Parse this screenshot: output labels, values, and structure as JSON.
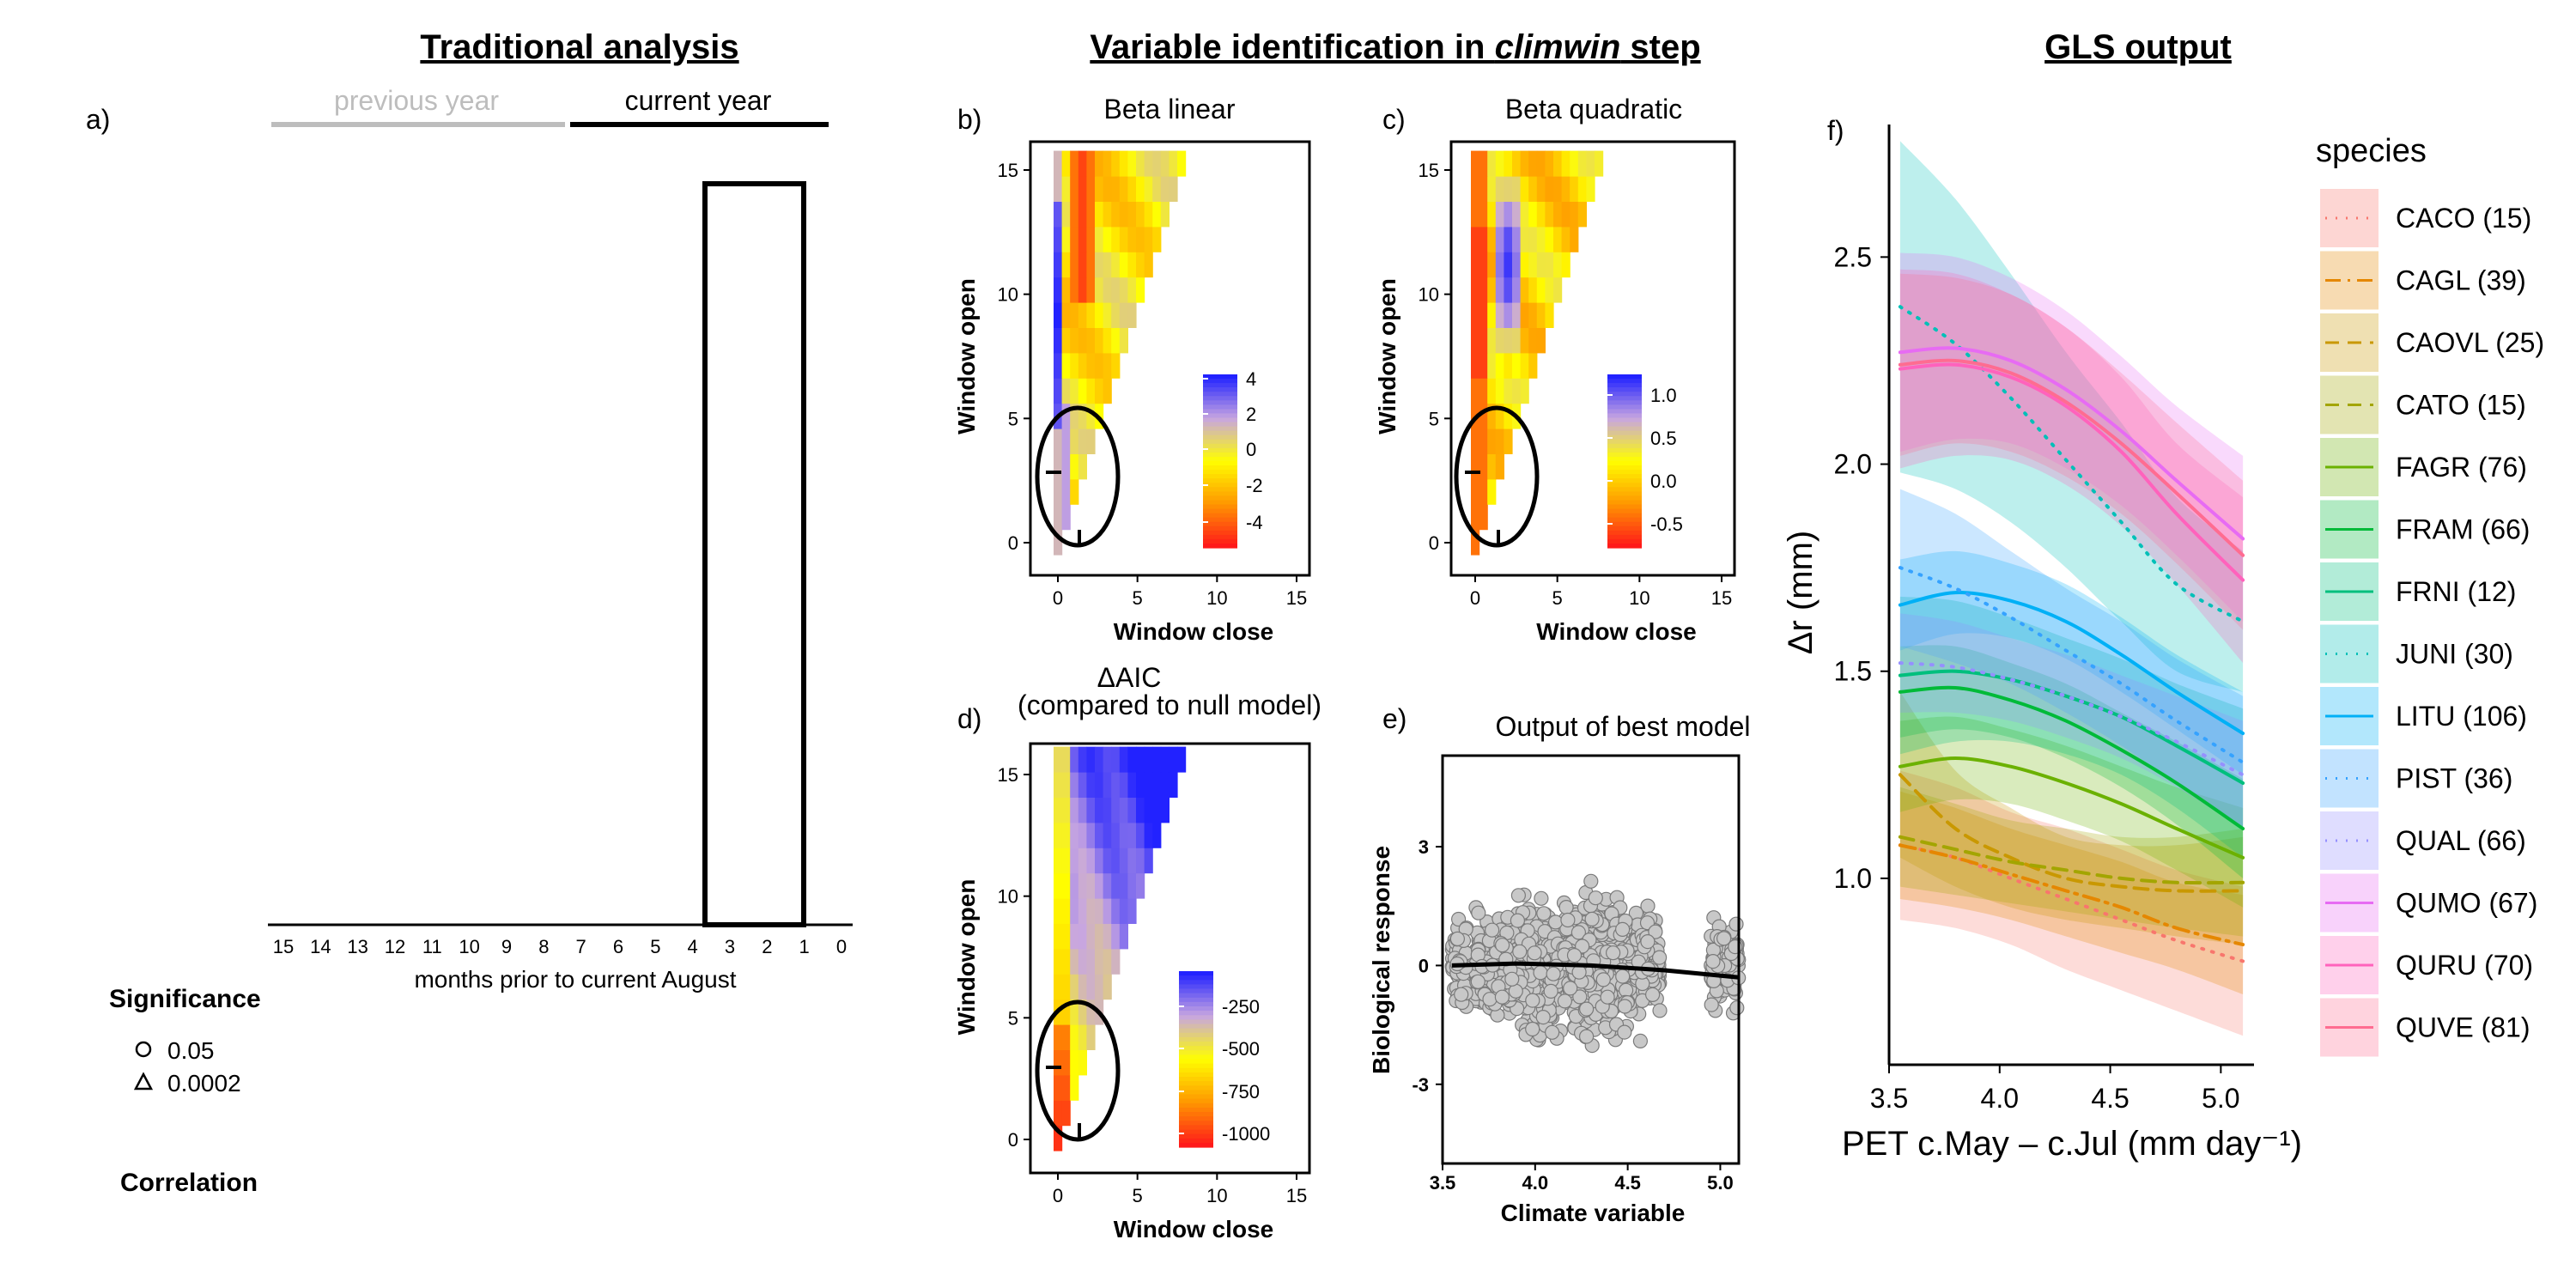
{
  "titles": {
    "traditional": "Traditional analysis",
    "variable_prefix": "Variable identification in ",
    "variable_italic": "climwin",
    "variable_suffix": " step",
    "gls": "GLS output"
  },
  "panel_a": {
    "label": "a)",
    "previous_year": "previous year",
    "current_year": "current year",
    "months": [
      "15",
      "14",
      "13",
      "12",
      "11",
      "10",
      "9",
      "8",
      "7",
      "6",
      "5",
      "4",
      "3",
      "2",
      "1",
      "0"
    ],
    "xlabel": "months prior to current August",
    "significance_title": "Significance",
    "sig_circle": "0.05",
    "sig_triangle": "0.0002",
    "correlation_title": "Correlation",
    "box_window": {
      "open": 3,
      "close": 1
    }
  },
  "panel_b": {
    "label": "b)",
    "title": "Beta linear",
    "legend_ticks": [
      "4",
      "2",
      "0",
      "-2",
      "-4"
    ]
  },
  "panel_c": {
    "label": "c)",
    "title": "Beta quadratic",
    "legend_ticks": [
      "1.0",
      "0.5",
      "0.0",
      "-0.5"
    ]
  },
  "panel_d": {
    "label": "d)",
    "title_line1": "ΔAIC",
    "title_line2": "(compared to null model)",
    "legend_ticks": [
      "-250",
      "-500",
      "-750",
      "-1000"
    ]
  },
  "heatmap_axes": {
    "xlabel": "Window close",
    "ylabel": "Window open",
    "xticks": [
      "0",
      "5",
      "10",
      "15"
    ],
    "yticks": [
      "0",
      "5",
      "10",
      "15"
    ]
  },
  "panel_e": {
    "label": "e)",
    "title": "Output of best model",
    "xlabel": "Climate variable",
    "ylabel": "Biological response",
    "xticks": [
      "3.5",
      "4.0",
      "4.5",
      "5.0"
    ],
    "yticks": [
      "3",
      "0",
      "-3"
    ]
  },
  "panel_f": {
    "label": "f)",
    "xlabel": "PET c.May – c.Jul (mm day⁻¹)",
    "ylabel": "Δr (mm)",
    "xticks": [
      "3.5",
      "4.0",
      "4.5",
      "5.0"
    ],
    "yticks": [
      "2.5",
      "2.0",
      "1.5",
      "1.0"
    ],
    "legend_title": "species"
  },
  "chart_data": [
    {
      "type": "bar",
      "panel": "a",
      "categories": [
        "15",
        "14",
        "13",
        "12",
        "11",
        "10",
        "9",
        "8",
        "7",
        "6",
        "5",
        "4",
        "3",
        "2",
        "1",
        "0"
      ],
      "values": [
        0,
        0,
        0,
        0,
        0,
        0,
        0,
        0,
        0,
        0,
        0,
        0,
        0,
        0,
        0,
        0
      ],
      "highlighted_window": {
        "from_month": 3,
        "to_month": 1
      }
    },
    {
      "type": "heatmap",
      "panel": "b",
      "title": "Beta linear",
      "xlabel": "Window close",
      "ylabel": "Window open",
      "xlim": [
        0,
        15
      ],
      "ylim": [
        0,
        15
      ],
      "color_range": [
        -4.5,
        4
      ],
      "colors": [
        "#ff1a1a",
        "#ff9800",
        "#ffff00",
        "#c8a6e0",
        "#2222ff"
      ],
      "best_window": {
        "open": 3,
        "close": 1
      }
    },
    {
      "type": "heatmap",
      "panel": "c",
      "title": "Beta quadratic",
      "xlabel": "Window close",
      "ylabel": "Window open",
      "xlim": [
        0,
        15
      ],
      "ylim": [
        0,
        15
      ],
      "color_range": [
        -0.8,
        1.2
      ],
      "colors": [
        "#ff1a1a",
        "#ff9800",
        "#ffff00",
        "#c8a6e0",
        "#2222ff"
      ],
      "best_window": {
        "open": 3,
        "close": 1
      }
    },
    {
      "type": "heatmap",
      "panel": "d",
      "title": "ΔAIC (compared to null model)",
      "xlabel": "Window close",
      "ylabel": "Window open",
      "xlim": [
        0,
        15
      ],
      "ylim": [
        0,
        15
      ],
      "color_range": [
        -1150,
        -100
      ],
      "colors": [
        "#ff1a1a",
        "#ff9800",
        "#ffff00",
        "#c8a6e0",
        "#2222ff"
      ],
      "best_window": {
        "open": 3,
        "close": 1
      }
    },
    {
      "type": "scatter",
      "panel": "e",
      "title": "Output of best model",
      "xlabel": "Climate variable",
      "ylabel": "Biological response",
      "xlim": [
        3.5,
        5.1
      ],
      "ylim": [
        -5,
        5.3
      ],
      "point_color": "#c8c8c8",
      "fit": {
        "x": [
          3.55,
          3.9,
          4.3,
          4.7,
          5.1
        ],
        "y": [
          0.0,
          0.05,
          0.0,
          -0.12,
          -0.3
        ]
      }
    },
    {
      "type": "line",
      "panel": "f",
      "xlabel": "PET c.May – c.Jul (mm day⁻¹)",
      "ylabel": "Δr (mm)",
      "xlim": [
        3.5,
        5.15
      ],
      "ylim": [
        0.55,
        2.82
      ],
      "x": [
        3.55,
        3.8,
        4.05,
        4.3,
        4.55,
        4.8,
        5.1
      ],
      "series": [
        {
          "name": "CACO (15)",
          "color": "#f8766d",
          "style": "dotted",
          "values": [
            1.08,
            1.05,
            1.0,
            0.95,
            0.9,
            0.85,
            0.8
          ],
          "lower": [
            0.9,
            0.88,
            0.84,
            0.78,
            0.73,
            0.68,
            0.62
          ],
          "upper": [
            1.26,
            1.22,
            1.16,
            1.12,
            1.07,
            1.02,
            0.98
          ]
        },
        {
          "name": "CAGL (39)",
          "color": "#e58700",
          "style": "dashdot",
          "values": [
            1.08,
            1.05,
            1.01,
            0.97,
            0.93,
            0.88,
            0.84
          ],
          "lower": [
            0.95,
            0.93,
            0.9,
            0.86,
            0.82,
            0.78,
            0.72
          ],
          "upper": [
            1.21,
            1.17,
            1.12,
            1.08,
            1.04,
            0.99,
            0.96
          ]
        },
        {
          "name": "CAOVL (25)",
          "color": "#c99800",
          "style": "dashed",
          "values": [
            1.25,
            1.12,
            1.05,
            1.0,
            0.98,
            0.97,
            0.97
          ],
          "lower": [
            1.05,
            0.98,
            0.93,
            0.9,
            0.88,
            0.86,
            0.84
          ],
          "upper": [
            1.45,
            1.26,
            1.17,
            1.1,
            1.08,
            1.08,
            1.1
          ]
        },
        {
          "name": "CATO (15)",
          "color": "#a3a500",
          "style": "dashed",
          "values": [
            1.1,
            1.07,
            1.04,
            1.02,
            1.0,
            0.99,
            0.99
          ],
          "lower": [
            0.98,
            0.96,
            0.94,
            0.92,
            0.9,
            0.88,
            0.86
          ],
          "upper": [
            1.22,
            1.18,
            1.14,
            1.12,
            1.1,
            1.1,
            1.12
          ]
        },
        {
          "name": "FAGR (76)",
          "color": "#6bb100",
          "style": "solid",
          "values": [
            1.27,
            1.29,
            1.27,
            1.23,
            1.18,
            1.12,
            1.05
          ],
          "lower": [
            1.16,
            1.19,
            1.18,
            1.14,
            1.09,
            1.02,
            0.93
          ],
          "upper": [
            1.38,
            1.39,
            1.36,
            1.32,
            1.27,
            1.22,
            1.17
          ]
        },
        {
          "name": "FRAM (66)",
          "color": "#00ba38",
          "style": "solid",
          "values": [
            1.45,
            1.46,
            1.43,
            1.38,
            1.31,
            1.23,
            1.12
          ],
          "lower": [
            1.34,
            1.36,
            1.34,
            1.29,
            1.22,
            1.13,
            1.0
          ],
          "upper": [
            1.56,
            1.56,
            1.52,
            1.47,
            1.4,
            1.33,
            1.24
          ]
        },
        {
          "name": "FRNI (12)",
          "color": "#00bf7d",
          "style": "solid",
          "values": [
            1.49,
            1.5,
            1.48,
            1.44,
            1.39,
            1.32,
            1.23
          ],
          "lower": [
            1.3,
            1.33,
            1.33,
            1.3,
            1.25,
            1.17,
            1.05
          ],
          "upper": [
            1.68,
            1.67,
            1.63,
            1.58,
            1.53,
            1.47,
            1.41
          ]
        },
        {
          "name": "JUNI (30)",
          "color": "#00c0b8",
          "style": "dotted",
          "values": [
            2.38,
            2.29,
            2.16,
            2.01,
            1.86,
            1.71,
            1.62
          ],
          "lower": [
            1.98,
            1.94,
            1.86,
            1.75,
            1.62,
            1.5,
            1.45
          ],
          "upper": [
            2.78,
            2.64,
            2.46,
            2.27,
            2.1,
            1.92,
            1.79
          ]
        },
        {
          "name": "LITU (106)",
          "color": "#00b0f6",
          "style": "solid",
          "values": [
            1.66,
            1.69,
            1.67,
            1.62,
            1.54,
            1.45,
            1.35
          ],
          "lower": [
            1.55,
            1.59,
            1.58,
            1.53,
            1.45,
            1.36,
            1.25
          ],
          "upper": [
            1.77,
            1.79,
            1.76,
            1.71,
            1.63,
            1.54,
            1.45
          ]
        },
        {
          "name": "PIST (36)",
          "color": "#35a2ff",
          "style": "dotted",
          "values": [
            1.75,
            1.7,
            1.63,
            1.55,
            1.47,
            1.38,
            1.28
          ],
          "lower": [
            1.56,
            1.52,
            1.47,
            1.4,
            1.32,
            1.23,
            1.12
          ],
          "upper": [
            1.94,
            1.88,
            1.79,
            1.7,
            1.62,
            1.53,
            1.44
          ]
        },
        {
          "name": "QUAL (66)",
          "color": "#9590ff",
          "style": "dotted",
          "values": [
            1.52,
            1.51,
            1.48,
            1.44,
            1.39,
            1.33,
            1.25
          ],
          "lower": [
            1.4,
            1.4,
            1.38,
            1.34,
            1.29,
            1.22,
            1.12
          ],
          "upper": [
            1.64,
            1.62,
            1.58,
            1.54,
            1.49,
            1.44,
            1.38
          ]
        },
        {
          "name": "QUMO (67)",
          "color": "#e76bf3",
          "style": "solid",
          "values": [
            2.27,
            2.28,
            2.25,
            2.18,
            2.08,
            1.96,
            1.82
          ],
          "lower": [
            2.03,
            2.06,
            2.05,
            1.99,
            1.9,
            1.78,
            1.62
          ],
          "upper": [
            2.51,
            2.5,
            2.45,
            2.37,
            2.26,
            2.14,
            2.02
          ]
        },
        {
          "name": "QURU (70)",
          "color": "#ff62bc",
          "style": "solid",
          "values": [
            2.23,
            2.24,
            2.21,
            2.14,
            2.03,
            1.88,
            1.72
          ],
          "lower": [
            1.99,
            2.02,
            2.01,
            1.95,
            1.85,
            1.71,
            1.52
          ],
          "upper": [
            2.47,
            2.46,
            2.41,
            2.33,
            2.21,
            2.05,
            1.92
          ]
        },
        {
          "name": "QUVE (81)",
          "color": "#ff6c91",
          "style": "solid",
          "values": [
            2.24,
            2.25,
            2.22,
            2.15,
            2.05,
            1.93,
            1.78
          ],
          "lower": [
            2.02,
            2.05,
            2.03,
            1.97,
            1.88,
            1.76,
            1.6
          ],
          "upper": [
            2.46,
            2.45,
            2.41,
            2.33,
            2.22,
            2.1,
            1.96
          ]
        }
      ]
    }
  ]
}
